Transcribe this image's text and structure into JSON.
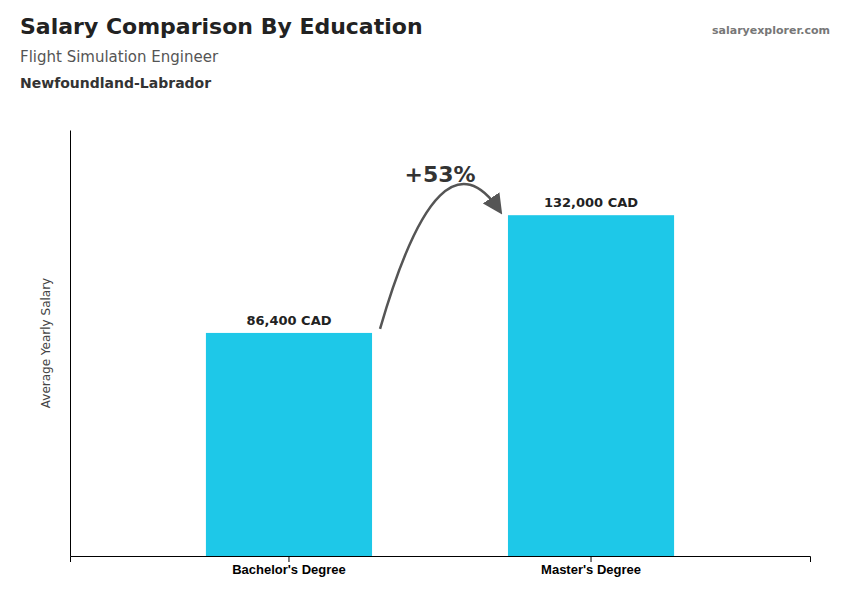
{
  "chart_data": {
    "type": "bar",
    "title": "Salary Comparison By Education",
    "subtitle": "Flight Simulation Engineer",
    "annotations": [
      "Newfoundland-Labrador",
      "+53%",
      "salaryexplorer.com"
    ],
    "ylabel": "Average Yearly Salary",
    "categories": [
      "Bachelor's Degree",
      "Master's Degree"
    ],
    "values": [
      86400,
      132000
    ],
    "value_labels": [
      "86,400 CAD",
      "132,000 CAD"
    ],
    "data_labels": true,
    "color": "#1EC8E8",
    "ylim": [
      0,
      165000
    ],
    "tick_labels": "x"
  }
}
